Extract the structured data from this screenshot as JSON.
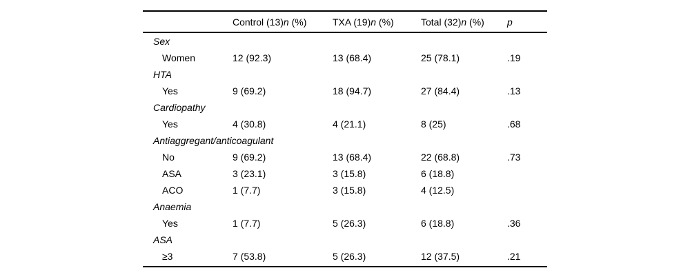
{
  "page": {
    "background": "#ffffff",
    "text_color": "#000000",
    "rule_color": "#000000"
  },
  "table": {
    "header": {
      "col_control": {
        "main": "Control (13)",
        "italic": "n",
        "suffix": " (%)"
      },
      "col_txa": {
        "main": "TXA (19)",
        "italic": "n",
        "suffix": " (%)"
      },
      "col_total": {
        "main": "Total (32)",
        "italic": "n",
        "suffix": " (%)"
      },
      "col_p": "p"
    },
    "rows": [
      {
        "type": "category",
        "label": "Sex"
      },
      {
        "type": "data",
        "label": "Women",
        "control": "12 (92.3)",
        "txa": "13 (68.4)",
        "total": "25 (78.1)",
        "p": ".19"
      },
      {
        "type": "category",
        "label": "HTA"
      },
      {
        "type": "data",
        "label": "Yes",
        "control": "9 (69.2)",
        "txa": "18 (94.7)",
        "total": "27 (84.4)",
        "p": ".13"
      },
      {
        "type": "category",
        "label": "Cardiopathy"
      },
      {
        "type": "data",
        "label": "Yes",
        "control": "4 (30.8)",
        "txa": "4 (21.1)",
        "total": "8 (25)",
        "p": ".68"
      },
      {
        "type": "category",
        "label": "Antiaggregant/anticoagulant"
      },
      {
        "type": "data",
        "label": "No",
        "control": "9 (69.2)",
        "txa": "13 (68.4)",
        "total": "22 (68.8)",
        "p": ".73"
      },
      {
        "type": "data",
        "label": "ASA",
        "control": "3 (23.1)",
        "txa": "3 (15.8)",
        "total": "6 (18.8)",
        "p": ""
      },
      {
        "type": "data",
        "label": "ACO",
        "control": "1 (7.7)",
        "txa": "3 (15.8)",
        "total": "4 (12.5)",
        "p": ""
      },
      {
        "type": "category",
        "label": "Anaemia"
      },
      {
        "type": "data",
        "label": "Yes",
        "control": "1 (7.7)",
        "txa": "5 (26.3)",
        "total": "6 (18.8)",
        "p": ".36"
      },
      {
        "type": "category",
        "label": "ASA"
      },
      {
        "type": "data",
        "label": "≥3",
        "control": "7 (53.8)",
        "txa": "5 (26.3)",
        "total": "12 (37.5)",
        "p": ".21"
      }
    ]
  }
}
